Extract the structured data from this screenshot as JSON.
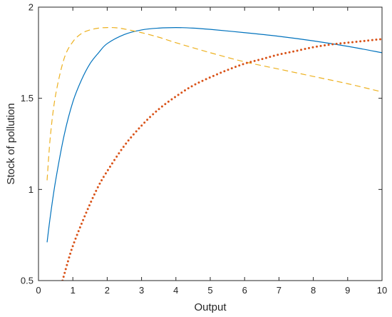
{
  "chart_data": {
    "type": "line",
    "title": "",
    "xlabel": "Output",
    "ylabel": "Stock of pollution",
    "xlim": [
      0,
      10
    ],
    "ylim": [
      0.5,
      2
    ],
    "x_ticks": [
      0,
      1,
      2,
      3,
      4,
      5,
      6,
      7,
      8,
      9,
      10
    ],
    "y_ticks": [
      0.5,
      1,
      1.5,
      2
    ],
    "y_tick_labels": [
      "0.5",
      "1",
      "1.5",
      "2"
    ],
    "grid": false,
    "legend": "none",
    "series": [
      {
        "style": "solid",
        "color": "#0072BD",
        "x": [
          0.25,
          0.35,
          0.5,
          0.75,
          1,
          1.25,
          1.5,
          1.75,
          2,
          2.5,
          3,
          3.5,
          4,
          4.5,
          5,
          6,
          7,
          8,
          9,
          10
        ],
        "y": [
          0.71,
          0.86,
          1.05,
          1.3,
          1.48,
          1.6,
          1.69,
          1.75,
          1.8,
          1.85,
          1.875,
          1.885,
          1.888,
          1.885,
          1.878,
          1.86,
          1.84,
          1.815,
          1.785,
          1.75
        ]
      },
      {
        "style": "dashed",
        "color": "#EDB120",
        "x": [
          0.25,
          0.35,
          0.5,
          0.75,
          1,
          1.25,
          1.5,
          1.75,
          2,
          2.25,
          2.5,
          3,
          3.5,
          4,
          5,
          6,
          7,
          8,
          9,
          10
        ],
        "y": [
          1.05,
          1.3,
          1.52,
          1.72,
          1.81,
          1.855,
          1.875,
          1.885,
          1.888,
          1.887,
          1.88,
          1.86,
          1.835,
          1.805,
          1.75,
          1.7,
          1.66,
          1.62,
          1.58,
          1.535
        ]
      },
      {
        "style": "dotted",
        "color": "#D95319",
        "x": [
          0.7,
          0.85,
          1,
          1.25,
          1.5,
          1.75,
          2,
          2.5,
          3,
          3.5,
          4,
          4.5,
          5,
          5.5,
          6,
          6.5,
          7,
          7.5,
          8,
          8.5,
          9,
          9.5,
          10
        ],
        "y": [
          0.5,
          0.6,
          0.69,
          0.81,
          0.92,
          1.02,
          1.1,
          1.24,
          1.35,
          1.44,
          1.51,
          1.57,
          1.615,
          1.655,
          1.69,
          1.715,
          1.74,
          1.76,
          1.78,
          1.795,
          1.805,
          1.815,
          1.825
        ]
      }
    ]
  }
}
